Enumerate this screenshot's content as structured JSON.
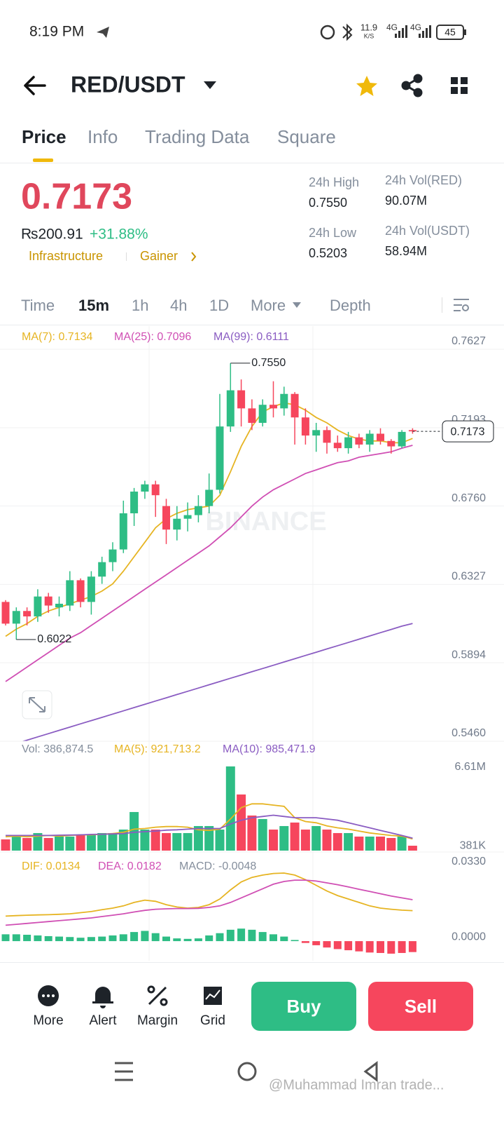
{
  "status_bar": {
    "time": "8:19 PM",
    "speed": "11.9",
    "speed_unit": "K/S",
    "net1": "4G",
    "net2": "4G",
    "battery": "45"
  },
  "header": {
    "pair": "RED/USDT"
  },
  "tabs": [
    "Price",
    "Info",
    "Trading Data",
    "Square"
  ],
  "ticker": {
    "price": "0.7173",
    "fiat": "₨200.91",
    "change": "+31.88%",
    "tag1": "Infrastructure",
    "tag2": "Gainer",
    "stats": [
      {
        "label": "24h High",
        "value": "0.7550"
      },
      {
        "label": "24h Vol(RED)",
        "value": "90.07M"
      },
      {
        "label": "24h Low",
        "value": "0.5203"
      },
      {
        "label": "24h Vol(USDT)",
        "value": "58.94M"
      }
    ]
  },
  "intervals": [
    "Time",
    "15m",
    "1h",
    "4h",
    "1D",
    "More",
    "Depth"
  ],
  "watermark": "BINANCE",
  "chart_data": [
    {
      "type": "candlestick",
      "up_color": "#2ebd85",
      "down_color": "#f6465d",
      "open": [
        0.623,
        0.611,
        0.618,
        0.615,
        0.626,
        0.62,
        0.621,
        0.635,
        0.623,
        0.637,
        0.645,
        0.652,
        0.672,
        0.684,
        0.688,
        0.676,
        0.663,
        0.669,
        0.671,
        0.676,
        0.685,
        0.72,
        0.74,
        0.73,
        0.722,
        0.732,
        0.73,
        0.738,
        0.725,
        0.715,
        0.718,
        0.711,
        0.708,
        0.714,
        0.71,
        0.716,
        0.712,
        0.709,
        0.718
      ],
      "high": [
        0.624,
        0.62,
        0.62,
        0.63,
        0.628,
        0.626,
        0.64,
        0.636,
        0.64,
        0.648,
        0.656,
        0.679,
        0.686,
        0.69,
        0.69,
        0.68,
        0.676,
        0.678,
        0.682,
        0.694,
        0.738,
        0.755,
        0.746,
        0.735,
        0.735,
        0.745,
        0.742,
        0.739,
        0.73,
        0.722,
        0.72,
        0.715,
        0.717,
        0.716,
        0.718,
        0.719,
        0.713,
        0.718,
        0.719
      ],
      "low": [
        0.61,
        0.6022,
        0.61,
        0.612,
        0.617,
        0.615,
        0.618,
        0.62,
        0.616,
        0.633,
        0.64,
        0.65,
        0.665,
        0.68,
        0.67,
        0.655,
        0.657,
        0.662,
        0.667,
        0.672,
        0.683,
        0.717,
        0.72,
        0.718,
        0.72,
        0.725,
        0.726,
        0.71,
        0.71,
        0.706,
        0.705,
        0.706,
        0.705,
        0.708,
        0.706,
        0.71,
        0.705,
        0.708,
        0.716
      ],
      "close": [
        0.611,
        0.618,
        0.615,
        0.626,
        0.621,
        0.622,
        0.635,
        0.623,
        0.637,
        0.645,
        0.652,
        0.672,
        0.684,
        0.688,
        0.682,
        0.663,
        0.669,
        0.671,
        0.676,
        0.685,
        0.72,
        0.74,
        0.73,
        0.722,
        0.732,
        0.73,
        0.738,
        0.725,
        0.715,
        0.718,
        0.711,
        0.708,
        0.714,
        0.71,
        0.716,
        0.712,
        0.709,
        0.717,
        0.7173
      ],
      "series": [
        {
          "name": "MA(7): 0.7134",
          "color": "#e6b422",
          "values": [
            0.604,
            0.608,
            0.611,
            0.615,
            0.618,
            0.62,
            0.622,
            0.624,
            0.626,
            0.629,
            0.633,
            0.64,
            0.648,
            0.656,
            0.664,
            0.669,
            0.672,
            0.674,
            0.675,
            0.676,
            0.682,
            0.695,
            0.709,
            0.72,
            0.728,
            0.731,
            0.733,
            0.732,
            0.729,
            0.725,
            0.722,
            0.718,
            0.715,
            0.713,
            0.712,
            0.712,
            0.711,
            0.711,
            0.7134
          ]
        },
        {
          "name": "MA(25): 0.7096",
          "color": "#d04fb4",
          "values": [
            0.579,
            0.583,
            0.587,
            0.591,
            0.595,
            0.599,
            0.603,
            0.606,
            0.61,
            0.614,
            0.618,
            0.622,
            0.626,
            0.63,
            0.634,
            0.638,
            0.642,
            0.646,
            0.65,
            0.654,
            0.659,
            0.664,
            0.67,
            0.676,
            0.681,
            0.685,
            0.688,
            0.691,
            0.694,
            0.696,
            0.698,
            0.7,
            0.701,
            0.703,
            0.704,
            0.705,
            0.706,
            0.708,
            0.7096
          ]
        },
        {
          "name": "MA(99): 0.6111",
          "color": "#8a5cc2",
          "values": [
            0.543,
            0.5448,
            0.5466,
            0.5484,
            0.5502,
            0.552,
            0.5538,
            0.5556,
            0.5574,
            0.5592,
            0.561,
            0.5628,
            0.5646,
            0.5664,
            0.5682,
            0.57,
            0.5718,
            0.5736,
            0.5754,
            0.5772,
            0.579,
            0.5808,
            0.5826,
            0.5844,
            0.5862,
            0.588,
            0.5898,
            0.5916,
            0.5934,
            0.5952,
            0.597,
            0.5988,
            0.6006,
            0.6024,
            0.6042,
            0.606,
            0.6078,
            0.6096,
            0.6111
          ]
        }
      ],
      "high_label": "0.7550",
      "low_label": "0.6022",
      "last_price": 0.7173,
      "last_price_label": "0.7173",
      "ylim": [
        0.546,
        0.7755
      ],
      "yticks": [
        0.7627,
        0.7193,
        {
          "value": 0.676,
          "label": "0.6760"
        },
        0.6327,
        0.5894,
        {
          "value": 0.546,
          "label": "0.5460"
        }
      ],
      "grid": true
    },
    {
      "type": "bar",
      "label": "Vol: 386,874.5",
      "values": [
        888000,
        1221000,
        999000,
        1388000,
        999000,
        1110000,
        1110000,
        1221000,
        1221000,
        1388000,
        1388000,
        1665000,
        3053000,
        1665000,
        1665000,
        1388000,
        1388000,
        1388000,
        1943000,
        1943000,
        1665000,
        6660000,
        4440000,
        2775000,
        2498000,
        1665000,
        1943000,
        2220000,
        1665000,
        1943000,
        1665000,
        1388000,
        1388000,
        1110000,
        1110000,
        1110000,
        999000,
        1110000,
        386874.5
      ],
      "series": [
        {
          "name": "MA(5): 921,713.2",
          "color": "#e6b422",
          "values": [
            1100000,
            1150000,
            1100000,
            1150000,
            1200000,
            1150000,
            1200000,
            1250000,
            1250000,
            1300000,
            1350000,
            1450000,
            1700000,
            1750000,
            1850000,
            1900000,
            1900000,
            1850000,
            1650000,
            1600000,
            1700000,
            2500000,
            3400000,
            3700000,
            3700000,
            3600000,
            3500000,
            2600000,
            2300000,
            2200000,
            1950000,
            1800000,
            1700000,
            1550000,
            1400000,
            1300000,
            1200000,
            1150000,
            921713.2
          ]
        },
        {
          "name": "MA(10): 985,471.9",
          "color": "#8a5cc2",
          "values": [
            1200000,
            1200000,
            1200000,
            1200000,
            1200000,
            1220000,
            1230000,
            1250000,
            1280000,
            1300000,
            1320000,
            1350000,
            1450000,
            1500000,
            1550000,
            1620000,
            1650000,
            1700000,
            1750000,
            1750000,
            1750000,
            2100000,
            2400000,
            2600000,
            2700000,
            2800000,
            2700000,
            2600000,
            2600000,
            2600000,
            2500000,
            2400000,
            2200000,
            2000000,
            1800000,
            1600000,
            1400000,
            1200000,
            985471.9
          ]
        }
      ],
      "ylim": [
        0,
        7100000
      ],
      "yticks": [
        {
          "value": 6610000,
          "label": "6.61M"
        },
        {
          "value": 381000,
          "label": "381K"
        }
      ]
    },
    {
      "type": "macd",
      "label": "MACD: -0.0048",
      "values": [
        0.003,
        0.003,
        0.0028,
        0.0025,
        0.0022,
        0.002,
        0.0018,
        0.0015,
        0.0018,
        0.002,
        0.0025,
        0.003,
        0.004,
        0.0045,
        0.0035,
        0.002,
        0.0012,
        0.001,
        0.0012,
        0.0025,
        0.0035,
        0.005,
        0.0055,
        0.005,
        0.004,
        0.003,
        0.002,
        0.0005,
        -0.0008,
        -0.0018,
        -0.0028,
        -0.0035,
        -0.004,
        -0.0045,
        -0.005,
        -0.0052,
        -0.0055,
        -0.0052,
        -0.0048
      ],
      "series": [
        {
          "name": "DIF: 0.0134",
          "color": "#e6b422",
          "values": [
            0.011,
            0.0112,
            0.0114,
            0.0115,
            0.0116,
            0.0118,
            0.012,
            0.0125,
            0.013,
            0.0138,
            0.0145,
            0.0155,
            0.017,
            0.018,
            0.0175,
            0.016,
            0.015,
            0.0145,
            0.0148,
            0.016,
            0.0185,
            0.0225,
            0.026,
            0.028,
            0.029,
            0.0297,
            0.0299,
            0.029,
            0.027,
            0.0245,
            0.022,
            0.02,
            0.0185,
            0.017,
            0.0155,
            0.0145,
            0.014,
            0.0136,
            0.0134
          ]
        },
        {
          "name": "DEA: 0.0182",
          "color": "#d04fb4",
          "values": [
            0.007,
            0.0074,
            0.0078,
            0.0082,
            0.0086,
            0.009,
            0.0094,
            0.0098,
            0.0102,
            0.0108,
            0.0114,
            0.012,
            0.0128,
            0.0135,
            0.014,
            0.0142,
            0.0143,
            0.0143,
            0.0144,
            0.0148,
            0.0155,
            0.017,
            0.019,
            0.021,
            0.023,
            0.025,
            0.0262,
            0.0268,
            0.0268,
            0.0264,
            0.0256,
            0.0248,
            0.0238,
            0.0228,
            0.0218,
            0.0208,
            0.0198,
            0.019,
            0.0182
          ]
        }
      ],
      "ylim": [
        -0.0086,
        0.0376
      ],
      "yticks": [
        {
          "value": 0.033,
          "label": "0.0330"
        },
        {
          "value": 0,
          "label": "0.0000"
        }
      ]
    }
  ],
  "toolbar": [
    "More",
    "Alert",
    "Margin",
    "Grid"
  ],
  "buttons": {
    "buy": "Buy",
    "sell": "Sell"
  },
  "footer_watermark": "@Muhammad Imran trade..."
}
